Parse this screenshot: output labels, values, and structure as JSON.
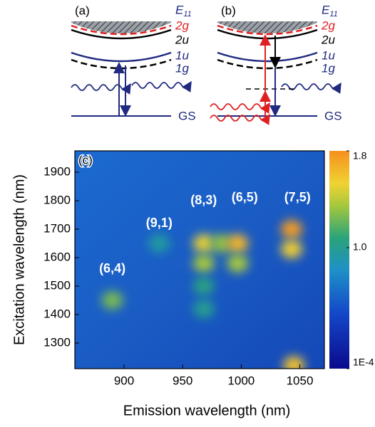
{
  "diagrams": [
    {
      "panel": "(a)",
      "levels": {
        "e": "E",
        "sub": "11",
        "g2": "2g",
        "u2": "2u",
        "u1": "1u",
        "g1": "1g"
      },
      "ground": "GS"
    },
    {
      "panel": "(b)",
      "levels": {
        "e": "E",
        "sub": "11",
        "g2": "2g",
        "u2": "2u",
        "u1": "1u",
        "g1": "1g"
      },
      "ground": "GS"
    }
  ],
  "chart_data": {
    "type": "heatmap",
    "panel": "(c)",
    "x_label": "Emission wavelength (nm)",
    "y_label": "Excitation wavelength (nm)",
    "xlim": [
      858,
      1071
    ],
    "ylim": [
      1210,
      1975
    ],
    "xticks": [
      900,
      950,
      1000,
      1050
    ],
    "yticks": [
      1300,
      1400,
      1500,
      1600,
      1700,
      1800,
      1900
    ],
    "clim": [
      0.0001,
      1.8
    ],
    "cticks": [
      {
        "value": 1.8,
        "label": "1.8"
      },
      {
        "value": 1.0,
        "label": "1.0"
      },
      {
        "value": 0.0001,
        "label": "1E-4"
      }
    ],
    "spots": [
      {
        "x": 890,
        "y": 1450,
        "value": 1.25
      },
      {
        "x": 930,
        "y": 1650,
        "value": 0.95
      },
      {
        "x": 968,
        "y": 1650,
        "value": 1.5
      },
      {
        "x": 968,
        "y": 1580,
        "value": 1.35
      },
      {
        "x": 968,
        "y": 1500,
        "value": 1.05
      },
      {
        "x": 968,
        "y": 1420,
        "value": 1.0
      },
      {
        "x": 983,
        "y": 1650,
        "value": 1.3
      },
      {
        "x": 997,
        "y": 1650,
        "value": 1.65
      },
      {
        "x": 997,
        "y": 1580,
        "value": 1.35
      },
      {
        "x": 1043,
        "y": 1700,
        "value": 1.75
      },
      {
        "x": 1043,
        "y": 1630,
        "value": 1.55
      },
      {
        "x": 1045,
        "y": 1222,
        "value": 1.6
      }
    ],
    "annotations": [
      {
        "text": "(6,4)",
        "x": 890,
        "y": 1560
      },
      {
        "text": "(9,1)",
        "x": 930,
        "y": 1720
      },
      {
        "text": "(8,3)",
        "x": 968,
        "y": 1800
      },
      {
        "text": "(6,5)",
        "x": 1003,
        "y": 1810
      },
      {
        "text": "(7,5)",
        "x": 1048,
        "y": 1810
      }
    ]
  }
}
